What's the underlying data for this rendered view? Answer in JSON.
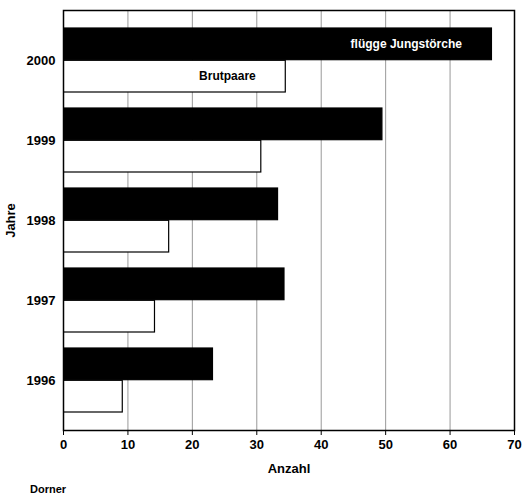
{
  "chart_data": {
    "type": "bar",
    "orientation": "horizontal",
    "categories": [
      "2000",
      "1999",
      "1998",
      "1997",
      "1996"
    ],
    "series": [
      {
        "name": "flügge Jungstörche",
        "color": "#000000",
        "values": [
          66.5,
          49.5,
          33.3,
          34.3,
          23.2
        ]
      },
      {
        "name": "Brutpaare",
        "color": "#ffffff",
        "values": [
          34.5,
          30.7,
          16.4,
          14.2,
          9.2
        ]
      }
    ],
    "xlim": [
      0,
      70
    ],
    "xticks": [
      0,
      10,
      20,
      30,
      40,
      50,
      60,
      70
    ],
    "xlabel": "Anzahl",
    "ylabel": "Jahre",
    "grid": true,
    "caption": "Dorner"
  }
}
